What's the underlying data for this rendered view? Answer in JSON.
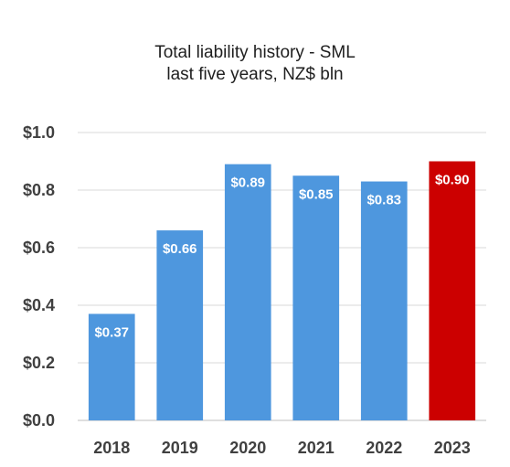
{
  "chart_data": {
    "type": "bar",
    "title": "Total liability history - SML",
    "subtitle": "last five years, NZ$ bln",
    "categories": [
      "2018",
      "2019",
      "2020",
      "2021",
      "2022",
      "2023"
    ],
    "values": [
      0.37,
      0.66,
      0.89,
      0.85,
      0.83,
      0.9
    ],
    "data_labels": [
      "$0.37",
      "$0.66",
      "$0.89",
      "$0.85",
      "$0.83",
      "$0.90"
    ],
    "bar_colors": [
      "#4e97de",
      "#4e97de",
      "#4e97de",
      "#4e97de",
      "#4e97de",
      "#cc0000"
    ],
    "ylim": [
      0,
      1.0
    ],
    "yticks": [
      0,
      0.2,
      0.4,
      0.6,
      0.8,
      1.0
    ],
    "ytick_labels": [
      "$0.0",
      "$0.2",
      "$0.4",
      "$0.6",
      "$0.8",
      "$1.0"
    ],
    "xlabel": "",
    "ylabel": "",
    "grid": true,
    "legend": "none"
  }
}
